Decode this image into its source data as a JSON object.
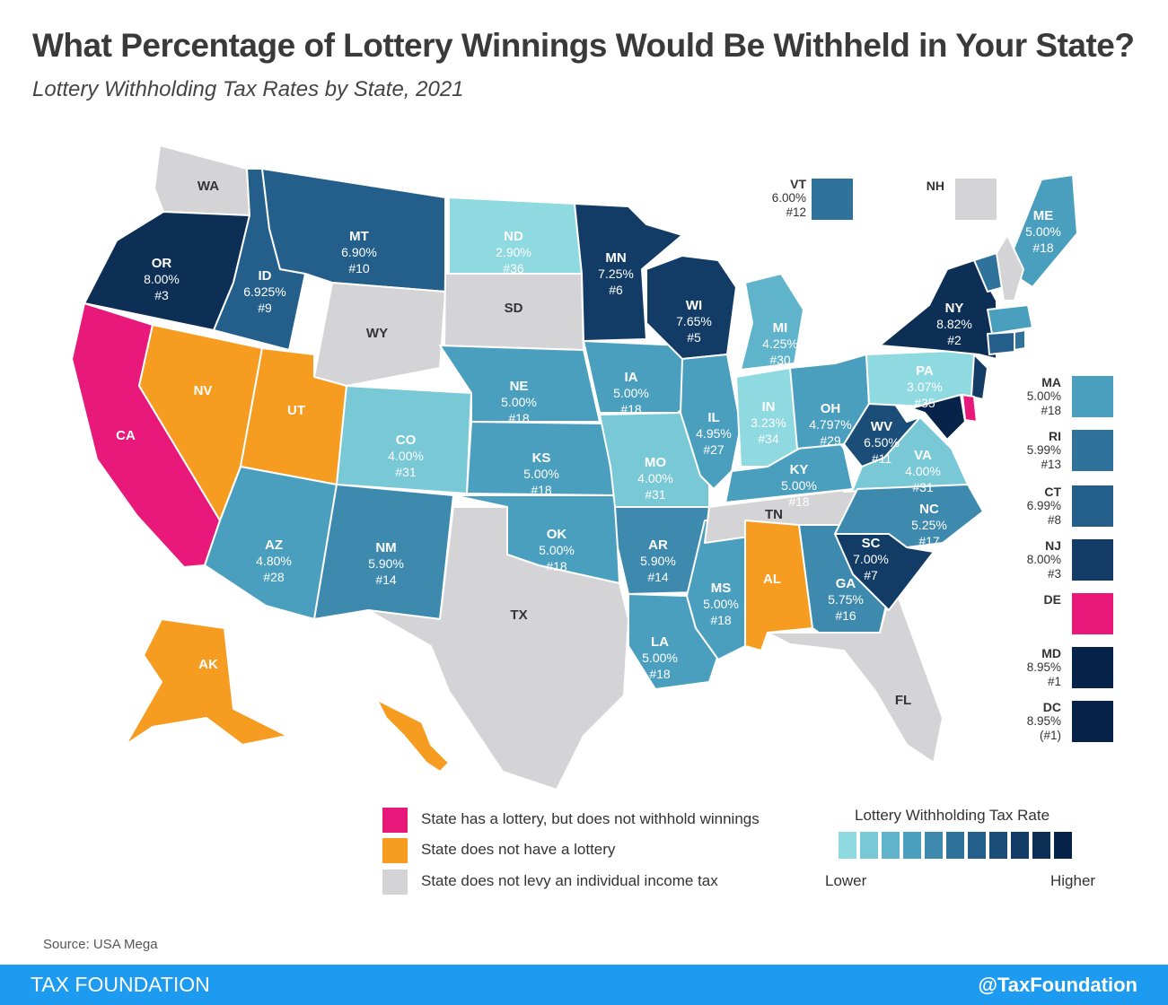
{
  "title": "What Percentage of Lottery Winnings Would Be Withheld in Your State?",
  "subtitle": "Lottery Withholding Tax Rates by State, 2021",
  "colors": {
    "no_withhold": "#e8197a",
    "no_lottery": "#f59c21",
    "no_income_tax": "#d4d4d6",
    "scale": [
      "#8fd9e0",
      "#78c8d6",
      "#5fb4cc",
      "#4b9fbe",
      "#3e8aae",
      "#2f739c",
      "#235f8a",
      "#1a4d78",
      "#123c66",
      "#0d2f56",
      "#08234a"
    ]
  },
  "states": [
    {
      "abbr": "WA",
      "rate": "",
      "rank": "",
      "cls": "income"
    },
    {
      "abbr": "OR",
      "rate": "8.00%",
      "rank": "#3",
      "cls": "9"
    },
    {
      "abbr": "CA",
      "rate": "",
      "rank": "",
      "cls": "nowithhold"
    },
    {
      "abbr": "NV",
      "rate": "",
      "rank": "",
      "cls": "nolottery"
    },
    {
      "abbr": "ID",
      "rate": "6.925%",
      "rank": "#9",
      "cls": "6"
    },
    {
      "abbr": "MT",
      "rate": "6.90%",
      "rank": "#10",
      "cls": "6"
    },
    {
      "abbr": "WY",
      "rate": "",
      "rank": "",
      "cls": "income"
    },
    {
      "abbr": "UT",
      "rate": "",
      "rank": "",
      "cls": "nolottery"
    },
    {
      "abbr": "AZ",
      "rate": "4.80%",
      "rank": "#28",
      "cls": "3"
    },
    {
      "abbr": "CO",
      "rate": "4.00%",
      "rank": "#31",
      "cls": "1"
    },
    {
      "abbr": "NM",
      "rate": "5.90%",
      "rank": "#14",
      "cls": "4"
    },
    {
      "abbr": "ND",
      "rate": "2.90%",
      "rank": "#36",
      "cls": "0"
    },
    {
      "abbr": "SD",
      "rate": "",
      "rank": "",
      "cls": "income"
    },
    {
      "abbr": "NE",
      "rate": "5.00%",
      "rank": "#18",
      "cls": "3"
    },
    {
      "abbr": "KS",
      "rate": "5.00%",
      "rank": "#18",
      "cls": "3"
    },
    {
      "abbr": "OK",
      "rate": "5.00%",
      "rank": "#18",
      "cls": "3"
    },
    {
      "abbr": "TX",
      "rate": "",
      "rank": "",
      "cls": "income"
    },
    {
      "abbr": "MN",
      "rate": "7.25%",
      "rank": "#6",
      "cls": "8"
    },
    {
      "abbr": "IA",
      "rate": "5.00%",
      "rank": "#18",
      "cls": "3"
    },
    {
      "abbr": "MO",
      "rate": "4.00%",
      "rank": "#31",
      "cls": "1"
    },
    {
      "abbr": "AR",
      "rate": "5.90%",
      "rank": "#14",
      "cls": "4"
    },
    {
      "abbr": "LA",
      "rate": "5.00%",
      "rank": "#18",
      "cls": "3"
    },
    {
      "abbr": "WI",
      "rate": "7.65%",
      "rank": "#5",
      "cls": "8"
    },
    {
      "abbr": "IL",
      "rate": "4.95%",
      "rank": "#27",
      "cls": "3"
    },
    {
      "abbr": "MS",
      "rate": "5.00%",
      "rank": "#18",
      "cls": "3"
    },
    {
      "abbr": "MI",
      "rate": "4.25%",
      "rank": "#30",
      "cls": "2"
    },
    {
      "abbr": "IN",
      "rate": "3.23%",
      "rank": "#34",
      "cls": "0"
    },
    {
      "abbr": "KY",
      "rate": "5.00%",
      "rank": "#18",
      "cls": "3"
    },
    {
      "abbr": "TN",
      "rate": "",
      "rank": "",
      "cls": "income"
    },
    {
      "abbr": "AL",
      "rate": "",
      "rank": "",
      "cls": "nolottery"
    },
    {
      "abbr": "OH",
      "rate": "4.797%",
      "rank": "#29",
      "cls": "3"
    },
    {
      "abbr": "GA",
      "rate": "5.75%",
      "rank": "#16",
      "cls": "4"
    },
    {
      "abbr": "FL",
      "rate": "",
      "rank": "",
      "cls": "income"
    },
    {
      "abbr": "WV",
      "rate": "6.50%",
      "rank": "#11",
      "cls": "7"
    },
    {
      "abbr": "VA",
      "rate": "4.00%",
      "rank": "#31",
      "cls": "1"
    },
    {
      "abbr": "NC",
      "rate": "5.25%",
      "rank": "#17",
      "cls": "4"
    },
    {
      "abbr": "SC",
      "rate": "7.00%",
      "rank": "#7",
      "cls": "8"
    },
    {
      "abbr": "PA",
      "rate": "3.07%",
      "rank": "#35",
      "cls": "0"
    },
    {
      "abbr": "NY",
      "rate": "8.82%",
      "rank": "#2",
      "cls": "9"
    },
    {
      "abbr": "ME",
      "rate": "5.00%",
      "rank": "#18",
      "cls": "3"
    },
    {
      "abbr": "AK",
      "rate": "",
      "rank": "",
      "cls": "nolottery"
    },
    {
      "abbr": "HI",
      "rate": "",
      "rank": "",
      "cls": "nolottery"
    }
  ],
  "vt": {
    "abbr": "VT",
    "rate": "6.00%",
    "rank": "#12"
  },
  "nh": {
    "abbr": "NH"
  },
  "sidebar": [
    {
      "abbr": "MA",
      "rate": "5.00%",
      "rank": "#18",
      "color": "#4b9fbe"
    },
    {
      "abbr": "RI",
      "rate": "5.99%",
      "rank": "#13",
      "color": "#2f739c"
    },
    {
      "abbr": "CT",
      "rate": "6.99%",
      "rank": "#8",
      "color": "#235f8a"
    },
    {
      "abbr": "NJ",
      "rate": "8.00%",
      "rank": "#3",
      "color": "#123c66"
    },
    {
      "abbr": "DE",
      "rate": "",
      "rank": "",
      "color": "#e8197a"
    },
    {
      "abbr": "MD",
      "rate": "8.95%",
      "rank": "#1",
      "color": "#08234a"
    },
    {
      "abbr": "DC",
      "rate": "8.95%",
      "rank": "(#1)",
      "color": "#08234a"
    }
  ],
  "legend": {
    "no_withhold": "State has a lottery, but does not withhold winnings",
    "no_lottery": "State does not have a lottery",
    "no_income_tax": "State does not levy an individual income tax",
    "scale_title": "Lottery Withholding Tax Rate",
    "lower": "Lower",
    "higher": "Higher"
  },
  "source": "Source: USA Mega",
  "footer": {
    "left": "TAX FOUNDATION",
    "right": "@TaxFoundation"
  }
}
